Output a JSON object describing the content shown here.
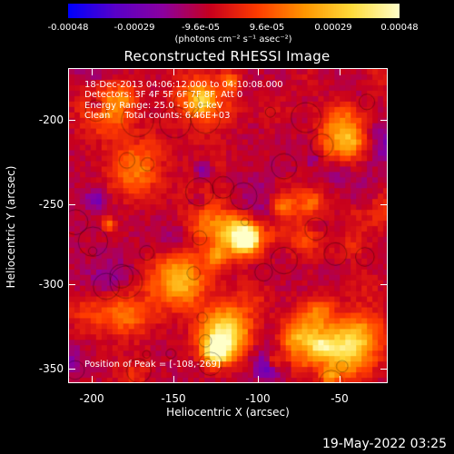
{
  "colorbar": {
    "labels": [
      "-0.00048",
      "-0.00029",
      "-9.6e-05",
      "9.6e-05",
      "0.00029",
      "0.00048"
    ],
    "units": "(photons cm⁻² s⁻¹ asec⁻²)",
    "colormap": [
      "#0000ff",
      "#5a00c8",
      "#8c00a0",
      "#c8001e",
      "#ff3c00",
      "#ff9600",
      "#ffdc3c",
      "#ffffc8"
    ]
  },
  "title": "Reconstructed RHESSI Image",
  "info": {
    "line1": "18-Dec-2013 04:06:12.000 to 04:10:08.000",
    "line2": "Detectors: 3F 4F 5F 6F 7F 8F, Att 0",
    "line3": "Energy Range: 25.0 - 50.0 keV",
    "line4": "Clean     Total counts: 6.46E+03",
    "peak": "Position of Peak = [-108,-269]"
  },
  "axes": {
    "xlabel": "Heliocentric X (arcsec)",
    "ylabel": "Heliocentric Y (arcsec)",
    "xticks": [
      "-200",
      "-150",
      "-100",
      "-50"
    ],
    "yticks": [
      "-200",
      "-250",
      "-300",
      "-350"
    ]
  },
  "timestamp": "19-May-2022 03:25"
}
